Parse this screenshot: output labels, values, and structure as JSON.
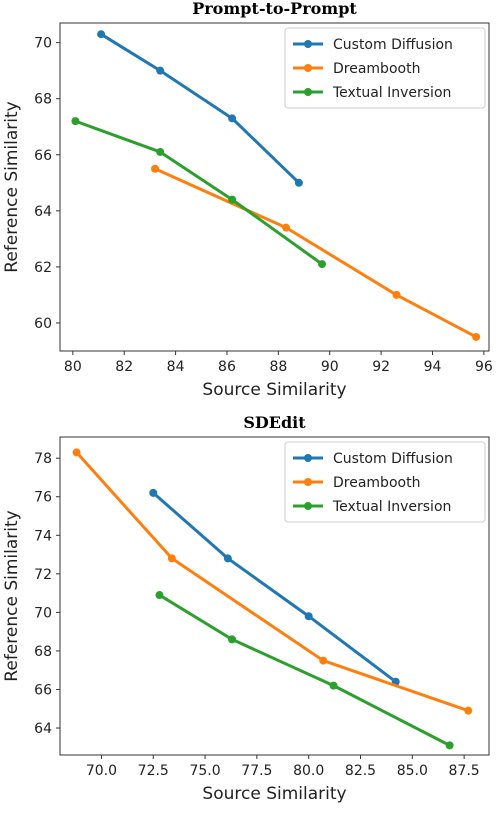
{
  "chart_data": [
    {
      "type": "line",
      "title": "Prompt-to-Prompt",
      "xlabel": "Source Similarity",
      "ylabel": "Reference Similarity",
      "xlim": [
        79.5,
        96.2
      ],
      "ylim": [
        59.0,
        70.7
      ],
      "xticks": [
        80,
        82,
        84,
        86,
        88,
        90,
        92,
        94,
        96
      ],
      "yticks": [
        60,
        62,
        64,
        66,
        68,
        70
      ],
      "xtick_labels": [
        "80",
        "82",
        "84",
        "86",
        "88",
        "90",
        "92",
        "94",
        "96"
      ],
      "ytick_labels": [
        "60",
        "62",
        "64",
        "66",
        "68",
        "70"
      ],
      "grid": false,
      "legend_position": "top-right",
      "series": [
        {
          "name": "Custom Diffusion",
          "color": "#1f77b4",
          "x": [
            81.1,
            83.4,
            86.2,
            88.8
          ],
          "y": [
            70.3,
            69.0,
            67.3,
            65.0
          ]
        },
        {
          "name": "Dreambooth",
          "color": "#ff7f0e",
          "x": [
            83.2,
            88.3,
            92.6,
            95.7
          ],
          "y": [
            65.5,
            63.4,
            61.0,
            59.5
          ]
        },
        {
          "name": "Textual Inversion",
          "color": "#2ca02c",
          "x": [
            80.1,
            83.4,
            86.2,
            89.7
          ],
          "y": [
            67.2,
            66.1,
            64.4,
            62.1
          ]
        }
      ]
    },
    {
      "type": "line",
      "title": "SDEdit",
      "xlabel": "Source Similarity",
      "ylabel": "Reference Similarity",
      "xlim": [
        68.0,
        88.7
      ],
      "ylim": [
        62.6,
        79.1
      ],
      "xticks": [
        70.0,
        72.5,
        75.0,
        77.5,
        80.0,
        82.5,
        85.0,
        87.5
      ],
      "yticks": [
        64,
        66,
        68,
        70,
        72,
        74,
        76,
        78
      ],
      "xtick_labels": [
        "70.0",
        "72.5",
        "75.0",
        "77.5",
        "80.0",
        "82.5",
        "85.0",
        "87.5"
      ],
      "ytick_labels": [
        "64",
        "66",
        "68",
        "70",
        "72",
        "74",
        "76",
        "78"
      ],
      "grid": false,
      "legend_position": "top-right",
      "series": [
        {
          "name": "Custom Diffusion",
          "color": "#1f77b4",
          "x": [
            72.5,
            76.1,
            80.0,
            84.2
          ],
          "y": [
            76.2,
            72.8,
            69.8,
            66.4
          ]
        },
        {
          "name": "Dreambooth",
          "color": "#ff7f0e",
          "x": [
            68.8,
            73.4,
            80.7,
            87.7
          ],
          "y": [
            78.3,
            72.8,
            67.5,
            64.9
          ]
        },
        {
          "name": "Textual Inversion",
          "color": "#2ca02c",
          "x": [
            72.8,
            76.3,
            81.2,
            86.8
          ],
          "y": [
            70.9,
            68.6,
            66.2,
            63.1
          ]
        }
      ]
    }
  ]
}
